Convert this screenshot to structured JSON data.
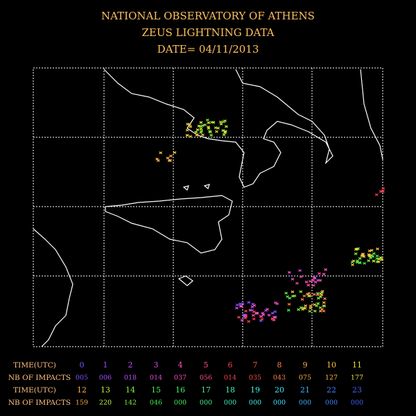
{
  "header": {
    "lines": [
      "NATIONAL OBSERVATORY OF ATHENS",
      "ZEUS LIGHTNING DATA",
      "DATE= 04/11/2013"
    ]
  },
  "legend": {
    "time_label": "TIME(UTC)",
    "impacts_label": "NB OF IMPACTS",
    "rows": [
      {
        "hours": [
          0,
          1,
          2,
          3,
          4,
          5,
          6,
          7,
          8,
          9,
          10,
          11
        ],
        "impacts": [
          "005",
          "006",
          "018",
          "014",
          "037",
          "056",
          "014",
          "035",
          "043",
          "075",
          "127",
          "177"
        ],
        "colors": [
          "#8050ff",
          "#a050ff",
          "#c050ff",
          "#e050e0",
          "#ff50c0",
          "#ff5090",
          "#ff4050",
          "#ff5040",
          "#ff8050",
          "#ffb050",
          "#ffc040",
          "#e8e840"
        ]
      },
      {
        "hours": [
          12,
          13,
          14,
          15,
          16,
          17,
          18,
          19,
          20,
          21,
          22,
          23
        ],
        "impacts": [
          "159",
          "220",
          "142",
          "046",
          "000",
          "000",
          "000",
          "000",
          "000",
          "000",
          "000",
          "000"
        ],
        "colors": [
          "#ffb040",
          "#c0f040",
          "#80f040",
          "#40f050",
          "#40f060",
          "#40f090",
          "#40f0c0",
          "#40f0f0",
          "#40e0ff",
          "#40b0ff",
          "#4080ff",
          "#4060ff"
        ]
      }
    ]
  }
}
